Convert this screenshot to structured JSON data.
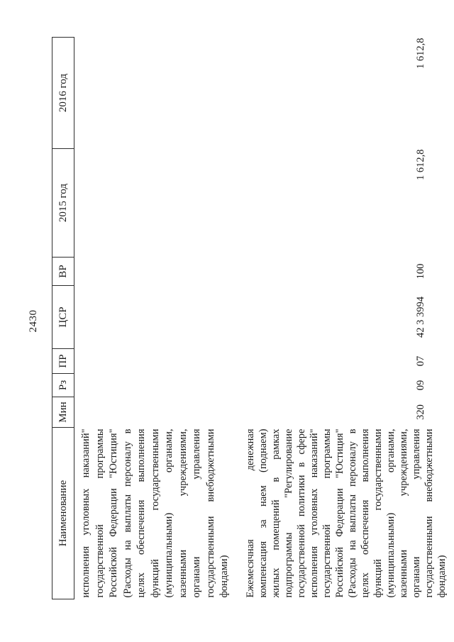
{
  "page_number": "2430",
  "colors": {
    "text": "#1b1b1b",
    "border": "#2e2e2e",
    "background": "#ffffff"
  },
  "table": {
    "headers": [
      "Наименование",
      "Мин",
      "Рз",
      "ПР",
      "ЦСР",
      "ВР",
      "2015 год",
      "2016 год"
    ],
    "rows": [
      {
        "name_lines": [
          "исполнения уголовных наказаний\"",
          "государственной программы",
          "Российской Федерации \"Юстиция\"",
          "(Расходы на выплаты персоналу в",
          "целях обеспечения выполнения",
          "функций государственными",
          "(муниципальными) органами,",
          "казенными учреждениями,",
          "органами управления",
          "государственными внебюджетными",
          "фондами)"
        ],
        "min": "",
        "rz": "",
        "pr": "",
        "csr": "",
        "vr": "",
        "y2015": "",
        "y2016": ""
      },
      {
        "name_lines": [
          "Ежемесячная денежная",
          "компенсация за наем (поднаем)",
          "жилых помещений в рамках",
          "подпрограммы \"Регулирование",
          "государственной политики в сфере",
          "исполнения уголовных наказаний\"",
          "государственной программы",
          "Российской Федерации \"Юстиция\"",
          "(Расходы на выплаты персоналу в",
          "целях обеспечения выполнения",
          "функций государственными",
          "(муниципальными) органами,",
          "казенными учреждениями,",
          "органами управления",
          "государственными внебюджетными",
          "фондами)"
        ],
        "min": "320",
        "rz": "09",
        "pr": "07",
        "csr": "42 3 3994",
        "vr": "100",
        "y2015": "1 612,8",
        "y2016": "1 612,8"
      }
    ]
  }
}
